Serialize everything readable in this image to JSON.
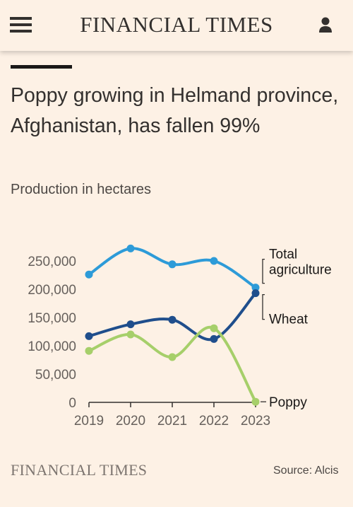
{
  "header": {
    "brand": "FINANCIAL TIMES"
  },
  "article": {
    "title": "Poppy growing in Helmand province, Afghanistan, has fallen 99%",
    "subtitle": "Production in hectares"
  },
  "footer": {
    "brand": "FINANCIAL TIMES",
    "source": "Source: Alcis"
  },
  "colors": {
    "background": "#fdf1e5",
    "total_agriculture": "#2d9bd8",
    "wheat": "#1f4e8c",
    "poppy": "#a6cf6a",
    "text": "#33302e"
  },
  "chart_data": {
    "type": "line",
    "x": [
      "2019",
      "2020",
      "2021",
      "2022",
      "2023"
    ],
    "y_ticks": [
      "0",
      "50,000",
      "100,000",
      "150,000",
      "200,000",
      "250,000"
    ],
    "ylim": [
      0,
      270000
    ],
    "grid": false,
    "series": [
      {
        "name": "Total agriculture",
        "values": [
          226000,
          272000,
          244000,
          250000,
          203000
        ]
      },
      {
        "name": "Wheat",
        "values": [
          117000,
          138000,
          146000,
          112000,
          193000
        ]
      },
      {
        "name": "Poppy",
        "values": [
          91000,
          120000,
          80000,
          131000,
          1000
        ]
      }
    ],
    "labels": {
      "total_line1": "Total",
      "total_line2": "agriculture",
      "wheat": "Wheat",
      "poppy": "Poppy"
    }
  }
}
